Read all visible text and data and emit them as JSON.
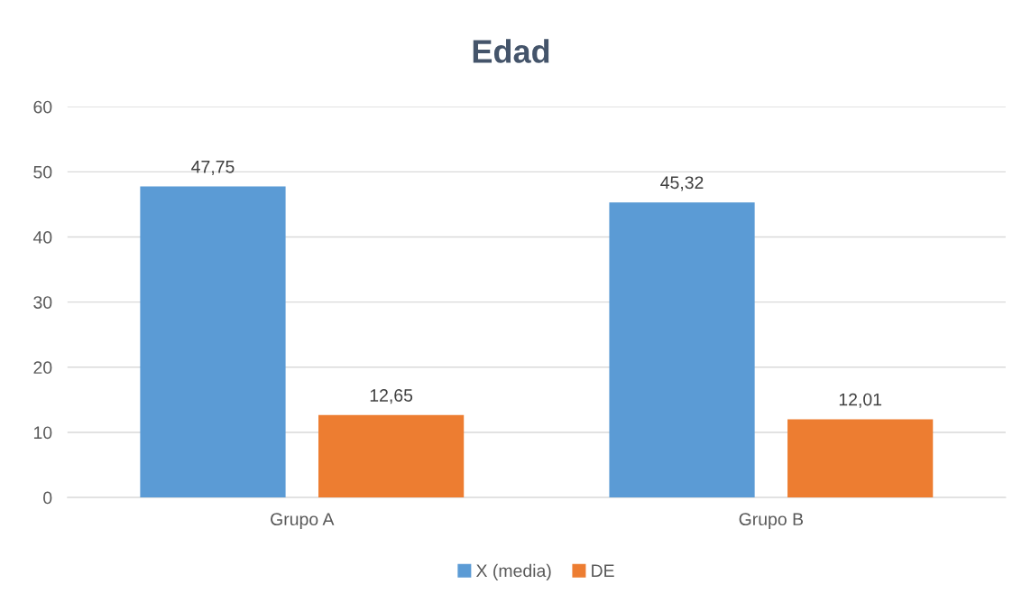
{
  "chart_data": {
    "type": "bar",
    "title": "Edad",
    "categories": [
      "Grupo A",
      "Grupo B"
    ],
    "series": [
      {
        "name": "X (media)",
        "color": "#5b9bd5",
        "values": [
          47.75,
          45.32
        ],
        "value_labels": [
          "47,75",
          "45,32"
        ]
      },
      {
        "name": "DE",
        "color": "#ed7d31",
        "values": [
          12.65,
          12.01
        ],
        "value_labels": [
          "12,65",
          "12,01"
        ]
      }
    ],
    "ylim": [
      0,
      60
    ],
    "yticks": [
      0,
      10,
      20,
      30,
      40,
      50,
      60
    ],
    "grid": "y",
    "legend": "bottom"
  }
}
